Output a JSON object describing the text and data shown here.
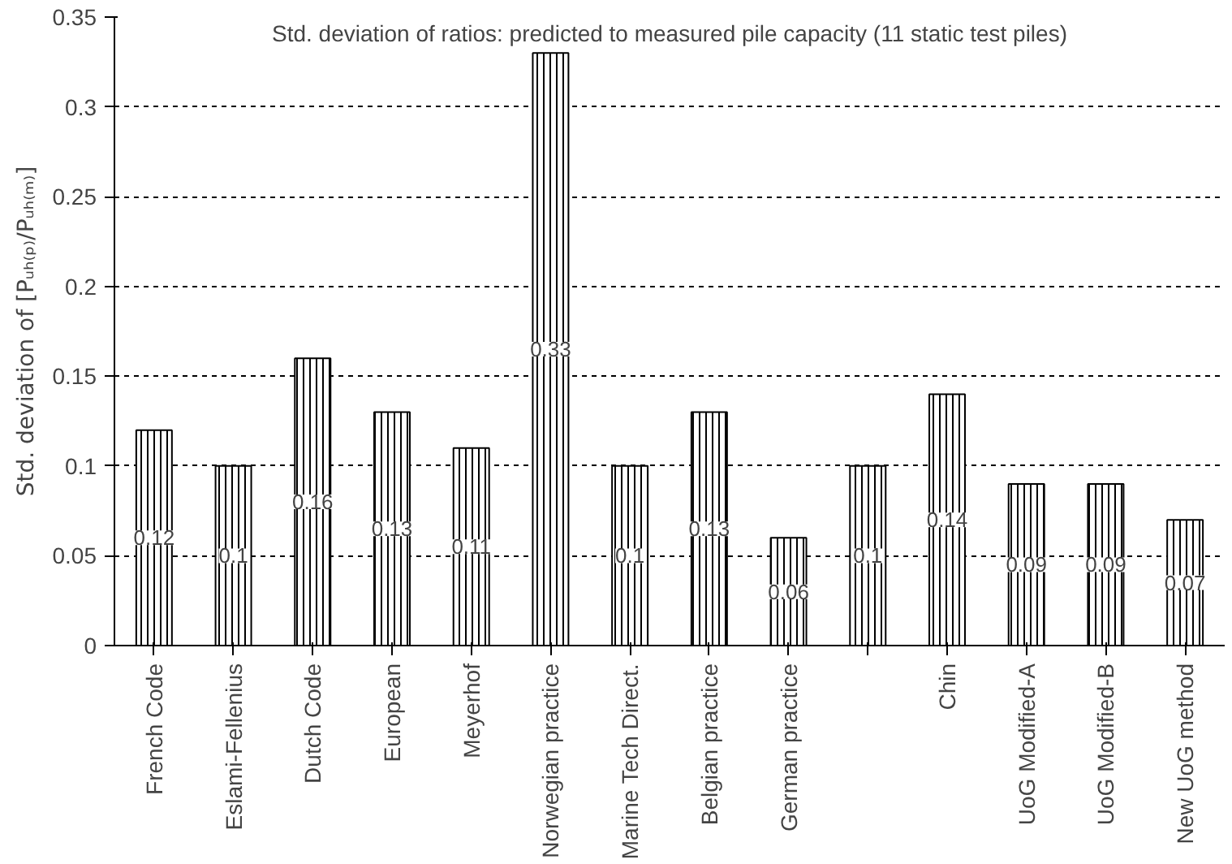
{
  "chart_data": {
    "type": "bar",
    "title": "Std. deviation of ratios: predicted to measured pile capacity (11 static test piles)",
    "ylabel": "Std. deviation of [Pᵤₕ₍ₚ₎/Pᵤₕ₍ₘ₎]",
    "categories": [
      "French Code",
      "Eslami-Fellenius",
      "Dutch Code",
      "European",
      "Meyerhof",
      "Norwegian practice",
      "Marine Tech Direct.",
      "Belgian practice",
      "German practice",
      null,
      "Chin",
      "UoG Modified-A",
      "UoG Modified-B",
      "New UoG method"
    ],
    "values": [
      0.12,
      0.1,
      0.16,
      0.13,
      0.11,
      0.33,
      0.1,
      0.13,
      0.06,
      0.1,
      0.14,
      0.09,
      0.09,
      0.07
    ],
    "color": "#000000",
    "data_labels": true,
    "ylim": [
      0,
      0.35
    ],
    "yticks": [
      0,
      0.05,
      0.1,
      0.15,
      0.2,
      0.25,
      0.3,
      0.35
    ],
    "grid": "y"
  }
}
